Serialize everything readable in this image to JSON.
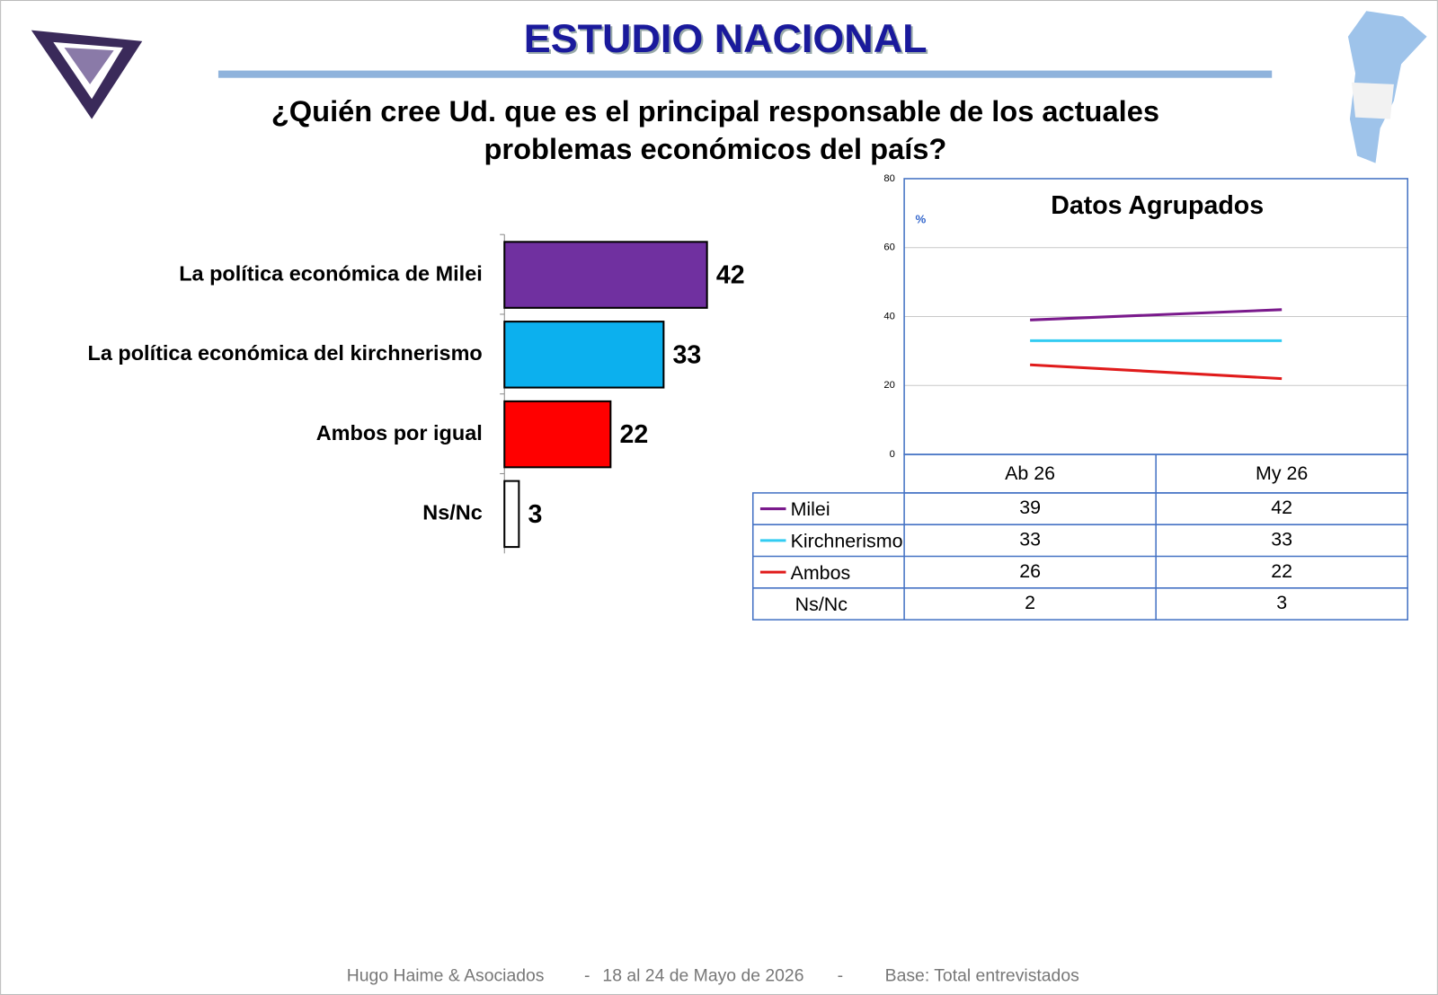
{
  "header": {
    "title": "ESTUDIO NACIONAL",
    "question": [
      "¿Quién cree Ud. que es el principal responsable de los actuales",
      "problemas económicos del país?"
    ]
  },
  "chart_data": [
    {
      "type": "bar",
      "orientation": "horizontal",
      "categories": [
        "La política económica de Milei",
        "La política económica del kirchnerismo",
        "Ambos por igual",
        "Ns/Nc"
      ],
      "values": [
        42,
        33,
        22,
        3
      ],
      "colors": [
        "#7030a0",
        "#0cb0ee",
        "#ff0000",
        "#ffffff"
      ]
    },
    {
      "type": "line",
      "title": "Datos Agrupados",
      "y_label": "%",
      "categories": [
        "Ab 26",
        "My 26"
      ],
      "series": [
        {
          "name": "Milei",
          "color": "#7a1a8c",
          "values": [
            39,
            42
          ]
        },
        {
          "name": "Kirchnerismo",
          "color": "#33ccf2",
          "values": [
            33,
            33
          ]
        },
        {
          "name": "Ambos",
          "color": "#e01b1b",
          "values": [
            26,
            22
          ]
        },
        {
          "name": "Ns/Nc",
          "values": [
            2,
            3
          ]
        }
      ],
      "ylim": [
        0,
        80
      ],
      "yticks": [
        0,
        20,
        40,
        60,
        80
      ],
      "grid": true,
      "data_table": true
    }
  ],
  "footer": [
    "Hugo Haime & Asociados",
    "-",
    "18 al 24 de Mayo de 2026",
    "-",
    "Base: Total entrevistados"
  ]
}
